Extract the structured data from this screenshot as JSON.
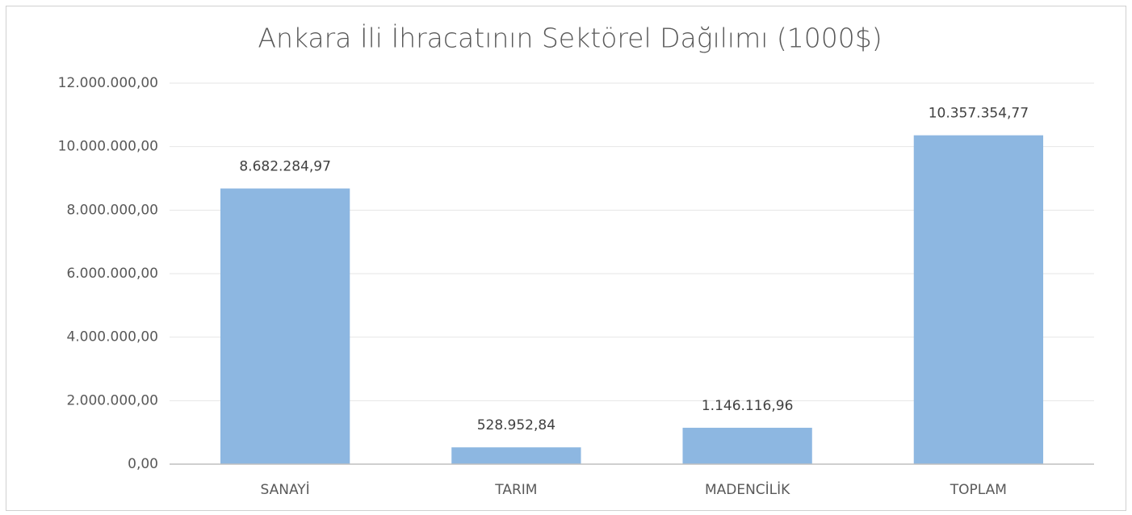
{
  "chart_data": {
    "type": "bar",
    "title": "Ankara İli İhracatının Sektörel Dağılımı (1000$)",
    "categories": [
      "SANAYİ",
      "TARIM",
      "MADENCİLİK",
      "TOPLAM"
    ],
    "values": [
      8682284.97,
      528952.84,
      1146116.96,
      10357354.77
    ],
    "value_labels": [
      "8.682.284,97",
      "528.952,84",
      "1.146.116,96",
      "10.357.354,77"
    ],
    "color": "#8db7e1",
    "ylim": [
      0,
      12000000
    ],
    "yticks": [
      {
        "value": 0,
        "label": "0,00"
      },
      {
        "value": 2000000,
        "label": "2.000.000,00"
      },
      {
        "value": 4000000,
        "label": "4.000.000,00"
      },
      {
        "value": 6000000,
        "label": "6.000.000,00"
      },
      {
        "value": 8000000,
        "label": "8.000.000,00"
      },
      {
        "value": 10000000,
        "label": "10.000.000,00"
      },
      {
        "value": 12000000,
        "label": "12.000.000,00"
      }
    ],
    "grid": true
  }
}
